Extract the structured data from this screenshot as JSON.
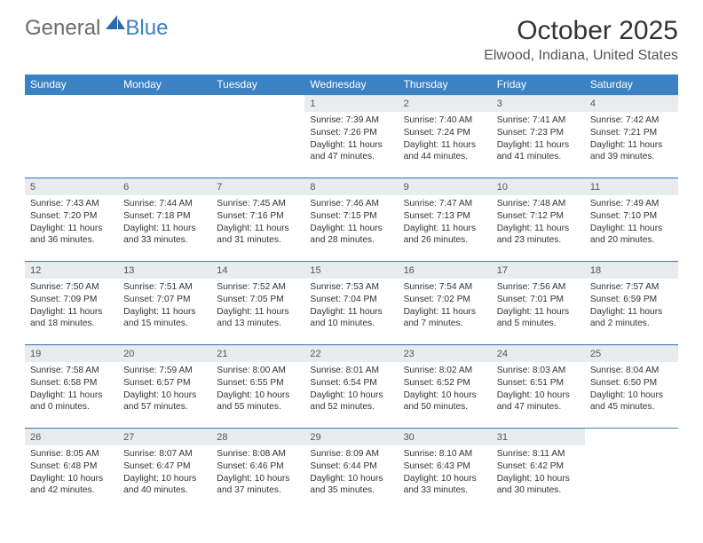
{
  "logo": {
    "general": "General",
    "blue": "Blue"
  },
  "title": "October 2025",
  "location": "Elwood, Indiana, United States",
  "colors": {
    "header_bg": "#3b82c4",
    "header_text": "#ffffff",
    "daynum_bg": "#e8ecef",
    "border": "#3b82c4",
    "body_text": "#333333",
    "logo_gray": "#6b6b6b",
    "logo_blue": "#3b7fc4"
  },
  "weekdays": [
    "Sunday",
    "Monday",
    "Tuesday",
    "Wednesday",
    "Thursday",
    "Friday",
    "Saturday"
  ],
  "weeks": [
    [
      null,
      null,
      null,
      {
        "n": "1",
        "sr": "Sunrise: 7:39 AM",
        "ss": "Sunset: 7:26 PM",
        "dl": "Daylight: 11 hours and 47 minutes."
      },
      {
        "n": "2",
        "sr": "Sunrise: 7:40 AM",
        "ss": "Sunset: 7:24 PM",
        "dl": "Daylight: 11 hours and 44 minutes."
      },
      {
        "n": "3",
        "sr": "Sunrise: 7:41 AM",
        "ss": "Sunset: 7:23 PM",
        "dl": "Daylight: 11 hours and 41 minutes."
      },
      {
        "n": "4",
        "sr": "Sunrise: 7:42 AM",
        "ss": "Sunset: 7:21 PM",
        "dl": "Daylight: 11 hours and 39 minutes."
      }
    ],
    [
      {
        "n": "5",
        "sr": "Sunrise: 7:43 AM",
        "ss": "Sunset: 7:20 PM",
        "dl": "Daylight: 11 hours and 36 minutes."
      },
      {
        "n": "6",
        "sr": "Sunrise: 7:44 AM",
        "ss": "Sunset: 7:18 PM",
        "dl": "Daylight: 11 hours and 33 minutes."
      },
      {
        "n": "7",
        "sr": "Sunrise: 7:45 AM",
        "ss": "Sunset: 7:16 PM",
        "dl": "Daylight: 11 hours and 31 minutes."
      },
      {
        "n": "8",
        "sr": "Sunrise: 7:46 AM",
        "ss": "Sunset: 7:15 PM",
        "dl": "Daylight: 11 hours and 28 minutes."
      },
      {
        "n": "9",
        "sr": "Sunrise: 7:47 AM",
        "ss": "Sunset: 7:13 PM",
        "dl": "Daylight: 11 hours and 26 minutes."
      },
      {
        "n": "10",
        "sr": "Sunrise: 7:48 AM",
        "ss": "Sunset: 7:12 PM",
        "dl": "Daylight: 11 hours and 23 minutes."
      },
      {
        "n": "11",
        "sr": "Sunrise: 7:49 AM",
        "ss": "Sunset: 7:10 PM",
        "dl": "Daylight: 11 hours and 20 minutes."
      }
    ],
    [
      {
        "n": "12",
        "sr": "Sunrise: 7:50 AM",
        "ss": "Sunset: 7:09 PM",
        "dl": "Daylight: 11 hours and 18 minutes."
      },
      {
        "n": "13",
        "sr": "Sunrise: 7:51 AM",
        "ss": "Sunset: 7:07 PM",
        "dl": "Daylight: 11 hours and 15 minutes."
      },
      {
        "n": "14",
        "sr": "Sunrise: 7:52 AM",
        "ss": "Sunset: 7:05 PM",
        "dl": "Daylight: 11 hours and 13 minutes."
      },
      {
        "n": "15",
        "sr": "Sunrise: 7:53 AM",
        "ss": "Sunset: 7:04 PM",
        "dl": "Daylight: 11 hours and 10 minutes."
      },
      {
        "n": "16",
        "sr": "Sunrise: 7:54 AM",
        "ss": "Sunset: 7:02 PM",
        "dl": "Daylight: 11 hours and 7 minutes."
      },
      {
        "n": "17",
        "sr": "Sunrise: 7:56 AM",
        "ss": "Sunset: 7:01 PM",
        "dl": "Daylight: 11 hours and 5 minutes."
      },
      {
        "n": "18",
        "sr": "Sunrise: 7:57 AM",
        "ss": "Sunset: 6:59 PM",
        "dl": "Daylight: 11 hours and 2 minutes."
      }
    ],
    [
      {
        "n": "19",
        "sr": "Sunrise: 7:58 AM",
        "ss": "Sunset: 6:58 PM",
        "dl": "Daylight: 11 hours and 0 minutes."
      },
      {
        "n": "20",
        "sr": "Sunrise: 7:59 AM",
        "ss": "Sunset: 6:57 PM",
        "dl": "Daylight: 10 hours and 57 minutes."
      },
      {
        "n": "21",
        "sr": "Sunrise: 8:00 AM",
        "ss": "Sunset: 6:55 PM",
        "dl": "Daylight: 10 hours and 55 minutes."
      },
      {
        "n": "22",
        "sr": "Sunrise: 8:01 AM",
        "ss": "Sunset: 6:54 PM",
        "dl": "Daylight: 10 hours and 52 minutes."
      },
      {
        "n": "23",
        "sr": "Sunrise: 8:02 AM",
        "ss": "Sunset: 6:52 PM",
        "dl": "Daylight: 10 hours and 50 minutes."
      },
      {
        "n": "24",
        "sr": "Sunrise: 8:03 AM",
        "ss": "Sunset: 6:51 PM",
        "dl": "Daylight: 10 hours and 47 minutes."
      },
      {
        "n": "25",
        "sr": "Sunrise: 8:04 AM",
        "ss": "Sunset: 6:50 PM",
        "dl": "Daylight: 10 hours and 45 minutes."
      }
    ],
    [
      {
        "n": "26",
        "sr": "Sunrise: 8:05 AM",
        "ss": "Sunset: 6:48 PM",
        "dl": "Daylight: 10 hours and 42 minutes."
      },
      {
        "n": "27",
        "sr": "Sunrise: 8:07 AM",
        "ss": "Sunset: 6:47 PM",
        "dl": "Daylight: 10 hours and 40 minutes."
      },
      {
        "n": "28",
        "sr": "Sunrise: 8:08 AM",
        "ss": "Sunset: 6:46 PM",
        "dl": "Daylight: 10 hours and 37 minutes."
      },
      {
        "n": "29",
        "sr": "Sunrise: 8:09 AM",
        "ss": "Sunset: 6:44 PM",
        "dl": "Daylight: 10 hours and 35 minutes."
      },
      {
        "n": "30",
        "sr": "Sunrise: 8:10 AM",
        "ss": "Sunset: 6:43 PM",
        "dl": "Daylight: 10 hours and 33 minutes."
      },
      {
        "n": "31",
        "sr": "Sunrise: 8:11 AM",
        "ss": "Sunset: 6:42 PM",
        "dl": "Daylight: 10 hours and 30 minutes."
      },
      null
    ]
  ]
}
